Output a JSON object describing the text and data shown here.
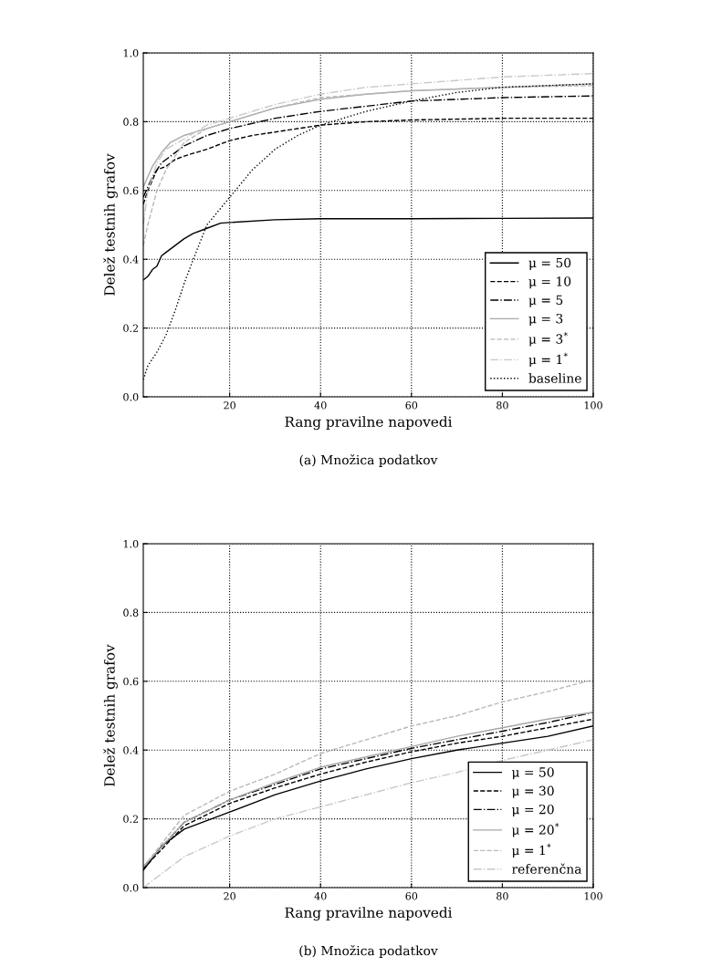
{
  "chart_data": [
    {
      "type": "line",
      "ylabel": "Delež testnih grafov",
      "xlabel": "Rang pravilne napovedi",
      "annotations": [
        "(a) Množica podatkov"
      ],
      "xlim": [
        1,
        100
      ],
      "ylim": [
        0,
        1
      ],
      "xticks": [
        20,
        40,
        60,
        80,
        100
      ],
      "yticks": [
        {
          "value": 0,
          "label": "0.0"
        },
        {
          "value": 0.2,
          "label": "0.2"
        },
        {
          "value": 0.4,
          "label": "0.4"
        },
        {
          "value": 0.6,
          "label": "0.6"
        },
        {
          "value": 0.8,
          "label": "0.8"
        },
        {
          "value": 1,
          "label": "1.0"
        }
      ],
      "grid": true,
      "legend": "bottom right",
      "marker": "none",
      "series": [
        {
          "name": "μ = 50",
          "color": "#000000",
          "line_style": "solid",
          "x": [
            1,
            2,
            3,
            4,
            5,
            6,
            8,
            10,
            12,
            15,
            18,
            20,
            30,
            40,
            60,
            80,
            100
          ],
          "values": [
            0.34,
            0.35,
            0.37,
            0.38,
            0.41,
            0.42,
            0.44,
            0.46,
            0.475,
            0.49,
            0.505,
            0.507,
            0.515,
            0.518,
            0.518,
            0.519,
            0.52
          ]
        },
        {
          "name": "μ = 10",
          "color": "#000000",
          "line_style": "dashed",
          "x": [
            1,
            2,
            3,
            4,
            6,
            8,
            10,
            15,
            20,
            25,
            30,
            40,
            50,
            60,
            80,
            100
          ],
          "values": [
            0.56,
            0.6,
            0.63,
            0.66,
            0.67,
            0.69,
            0.7,
            0.72,
            0.745,
            0.76,
            0.77,
            0.79,
            0.8,
            0.805,
            0.81,
            0.81
          ]
        },
        {
          "name": "μ = 5",
          "color": "#000000",
          "line_style": "dashdot",
          "x": [
            1,
            3,
            5,
            8,
            10,
            15,
            20,
            30,
            40,
            50,
            60,
            70,
            80,
            100
          ],
          "values": [
            0.58,
            0.64,
            0.68,
            0.71,
            0.73,
            0.76,
            0.78,
            0.81,
            0.83,
            0.845,
            0.86,
            0.865,
            0.87,
            0.875
          ]
        },
        {
          "name": "μ = 3",
          "color": "#a8a8a8",
          "line_style": "solid",
          "x": [
            1,
            2,
            3,
            5,
            7,
            10,
            15,
            20,
            30,
            40,
            50,
            60,
            80,
            100
          ],
          "values": [
            0.61,
            0.64,
            0.67,
            0.71,
            0.74,
            0.76,
            0.78,
            0.8,
            0.84,
            0.865,
            0.88,
            0.89,
            0.9,
            0.91
          ]
        },
        {
          "name": "μ = 3$^{*}$",
          "color": "#b8b8b8",
          "line_style": "dashed",
          "x": [
            1,
            2,
            3,
            4,
            5,
            6,
            8,
            10,
            15,
            20,
            30,
            40,
            60,
            80,
            100
          ],
          "values": [
            0.44,
            0.5,
            0.55,
            0.6,
            0.63,
            0.66,
            0.7,
            0.74,
            0.78,
            0.8,
            0.84,
            0.87,
            0.89,
            0.9,
            0.905
          ]
        },
        {
          "name": "μ = 1$^{*}$",
          "color": "#c8c8c8",
          "line_style": "dashdot",
          "x": [
            1,
            2,
            4,
            6,
            10,
            15,
            20,
            30,
            40,
            50,
            60,
            80,
            100
          ],
          "values": [
            0.5,
            0.6,
            0.68,
            0.72,
            0.75,
            0.79,
            0.81,
            0.85,
            0.88,
            0.9,
            0.91,
            0.93,
            0.94
          ]
        },
        {
          "name": "baseline",
          "color": "#000000",
          "line_style": "dotted",
          "x": [
            1,
            2,
            4,
            6,
            8,
            10,
            12,
            15,
            20,
            25,
            30,
            35,
            40,
            50,
            60,
            70,
            80,
            100
          ],
          "values": [
            0.05,
            0.09,
            0.13,
            0.18,
            0.25,
            0.33,
            0.4,
            0.5,
            0.58,
            0.66,
            0.72,
            0.76,
            0.79,
            0.83,
            0.86,
            0.885,
            0.9,
            0.91
          ]
        }
      ]
    },
    {
      "type": "line",
      "ylabel": "Delež testnih grafov",
      "xlabel": "Rang pravilne napovedi",
      "annotations": [
        "(b) Množica podatkov"
      ],
      "xlim": [
        1,
        100
      ],
      "ylim": [
        0,
        1
      ],
      "xticks": [
        20,
        40,
        60,
        80,
        100
      ],
      "yticks": [
        {
          "value": 0,
          "label": "0.0"
        },
        {
          "value": 0.2,
          "label": "0.2"
        },
        {
          "value": 0.4,
          "label": "0.4"
        },
        {
          "value": 0.6,
          "label": "0.6"
        },
        {
          "value": 0.8,
          "label": "0.8"
        },
        {
          "value": 1,
          "label": "1.0"
        }
      ],
      "grid": true,
      "legend": "bottom right",
      "marker": "none",
      "series": [
        {
          "name": "μ = 50",
          "color": "#000000",
          "line_style": "solid",
          "x": [
            1,
            5,
            10,
            20,
            30,
            40,
            50,
            60,
            70,
            80,
            90,
            100
          ],
          "values": [
            0.05,
            0.12,
            0.17,
            0.22,
            0.27,
            0.31,
            0.345,
            0.375,
            0.4,
            0.42,
            0.44,
            0.47
          ]
        },
        {
          "name": "μ = 30",
          "color": "#000000",
          "line_style": "dashed",
          "x": [
            1,
            10,
            20,
            30,
            40,
            50,
            60,
            70,
            80,
            90,
            100
          ],
          "values": [
            0.055,
            0.18,
            0.245,
            0.29,
            0.33,
            0.365,
            0.395,
            0.42,
            0.44,
            0.465,
            0.49
          ]
        },
        {
          "name": "μ = 20",
          "color": "#000000",
          "line_style": "dashdot",
          "x": [
            1,
            10,
            20,
            30,
            40,
            50,
            60,
            70,
            80,
            90,
            100
          ],
          "values": [
            0.06,
            0.19,
            0.255,
            0.3,
            0.345,
            0.375,
            0.405,
            0.43,
            0.455,
            0.48,
            0.51
          ]
        },
        {
          "name": "μ = 20$^{*}$",
          "color": "#a8a8a8",
          "line_style": "solid",
          "x": [
            1,
            10,
            20,
            30,
            40,
            50,
            60,
            70,
            80,
            90,
            100
          ],
          "values": [
            0.06,
            0.19,
            0.255,
            0.305,
            0.35,
            0.38,
            0.41,
            0.44,
            0.465,
            0.49,
            0.51
          ]
        },
        {
          "name": "μ = 1$^{*}$",
          "color": "#b8b8b8",
          "line_style": "dashed",
          "x": [
            1,
            10,
            20,
            30,
            40,
            50,
            60,
            70,
            80,
            90,
            100
          ],
          "values": [
            0.06,
            0.21,
            0.28,
            0.33,
            0.39,
            0.43,
            0.47,
            0.5,
            0.54,
            0.57,
            0.605
          ]
        },
        {
          "name": "referenčna",
          "color": "#c8c8c8",
          "line_style": "dashdot",
          "x": [
            1,
            5,
            10,
            20,
            30,
            40,
            50,
            60,
            70,
            80,
            90,
            100
          ],
          "values": [
            0.0,
            0.04,
            0.09,
            0.15,
            0.2,
            0.235,
            0.27,
            0.305,
            0.335,
            0.37,
            0.4,
            0.43
          ]
        }
      ]
    }
  ]
}
